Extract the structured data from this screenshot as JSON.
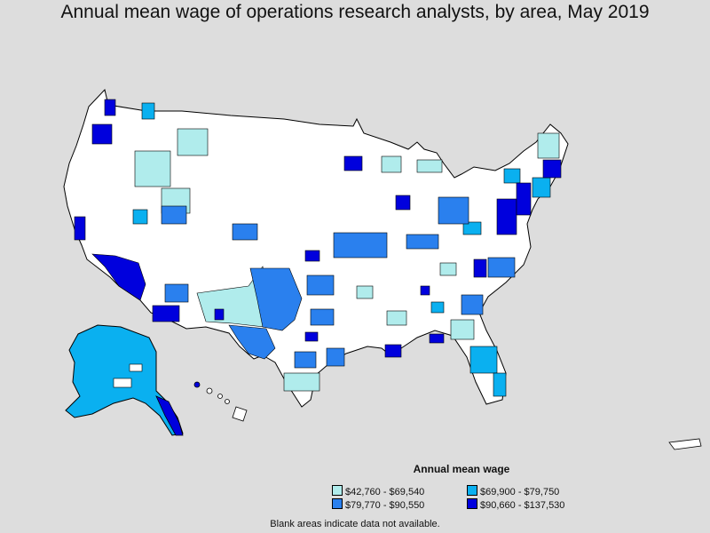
{
  "title": "Annual mean wage of operations research analysts, by area, May 2019",
  "legend": {
    "title": "Annual mean wage",
    "items": [
      {
        "label": "$42,760 - $69,540",
        "color": "#b0ecec"
      },
      {
        "label": "$69,900 - $79,750",
        "color": "#0ab0f0"
      },
      {
        "label": "$79,770 - $90,550",
        "color": "#2a80ee"
      },
      {
        "label": "$90,660 - $137,530",
        "color": "#0000dd"
      }
    ]
  },
  "footnote": "Blank areas indicate data not available.",
  "colors": {
    "background": "#dddddd",
    "no_data": "#ffffff",
    "border": "#000000"
  }
}
